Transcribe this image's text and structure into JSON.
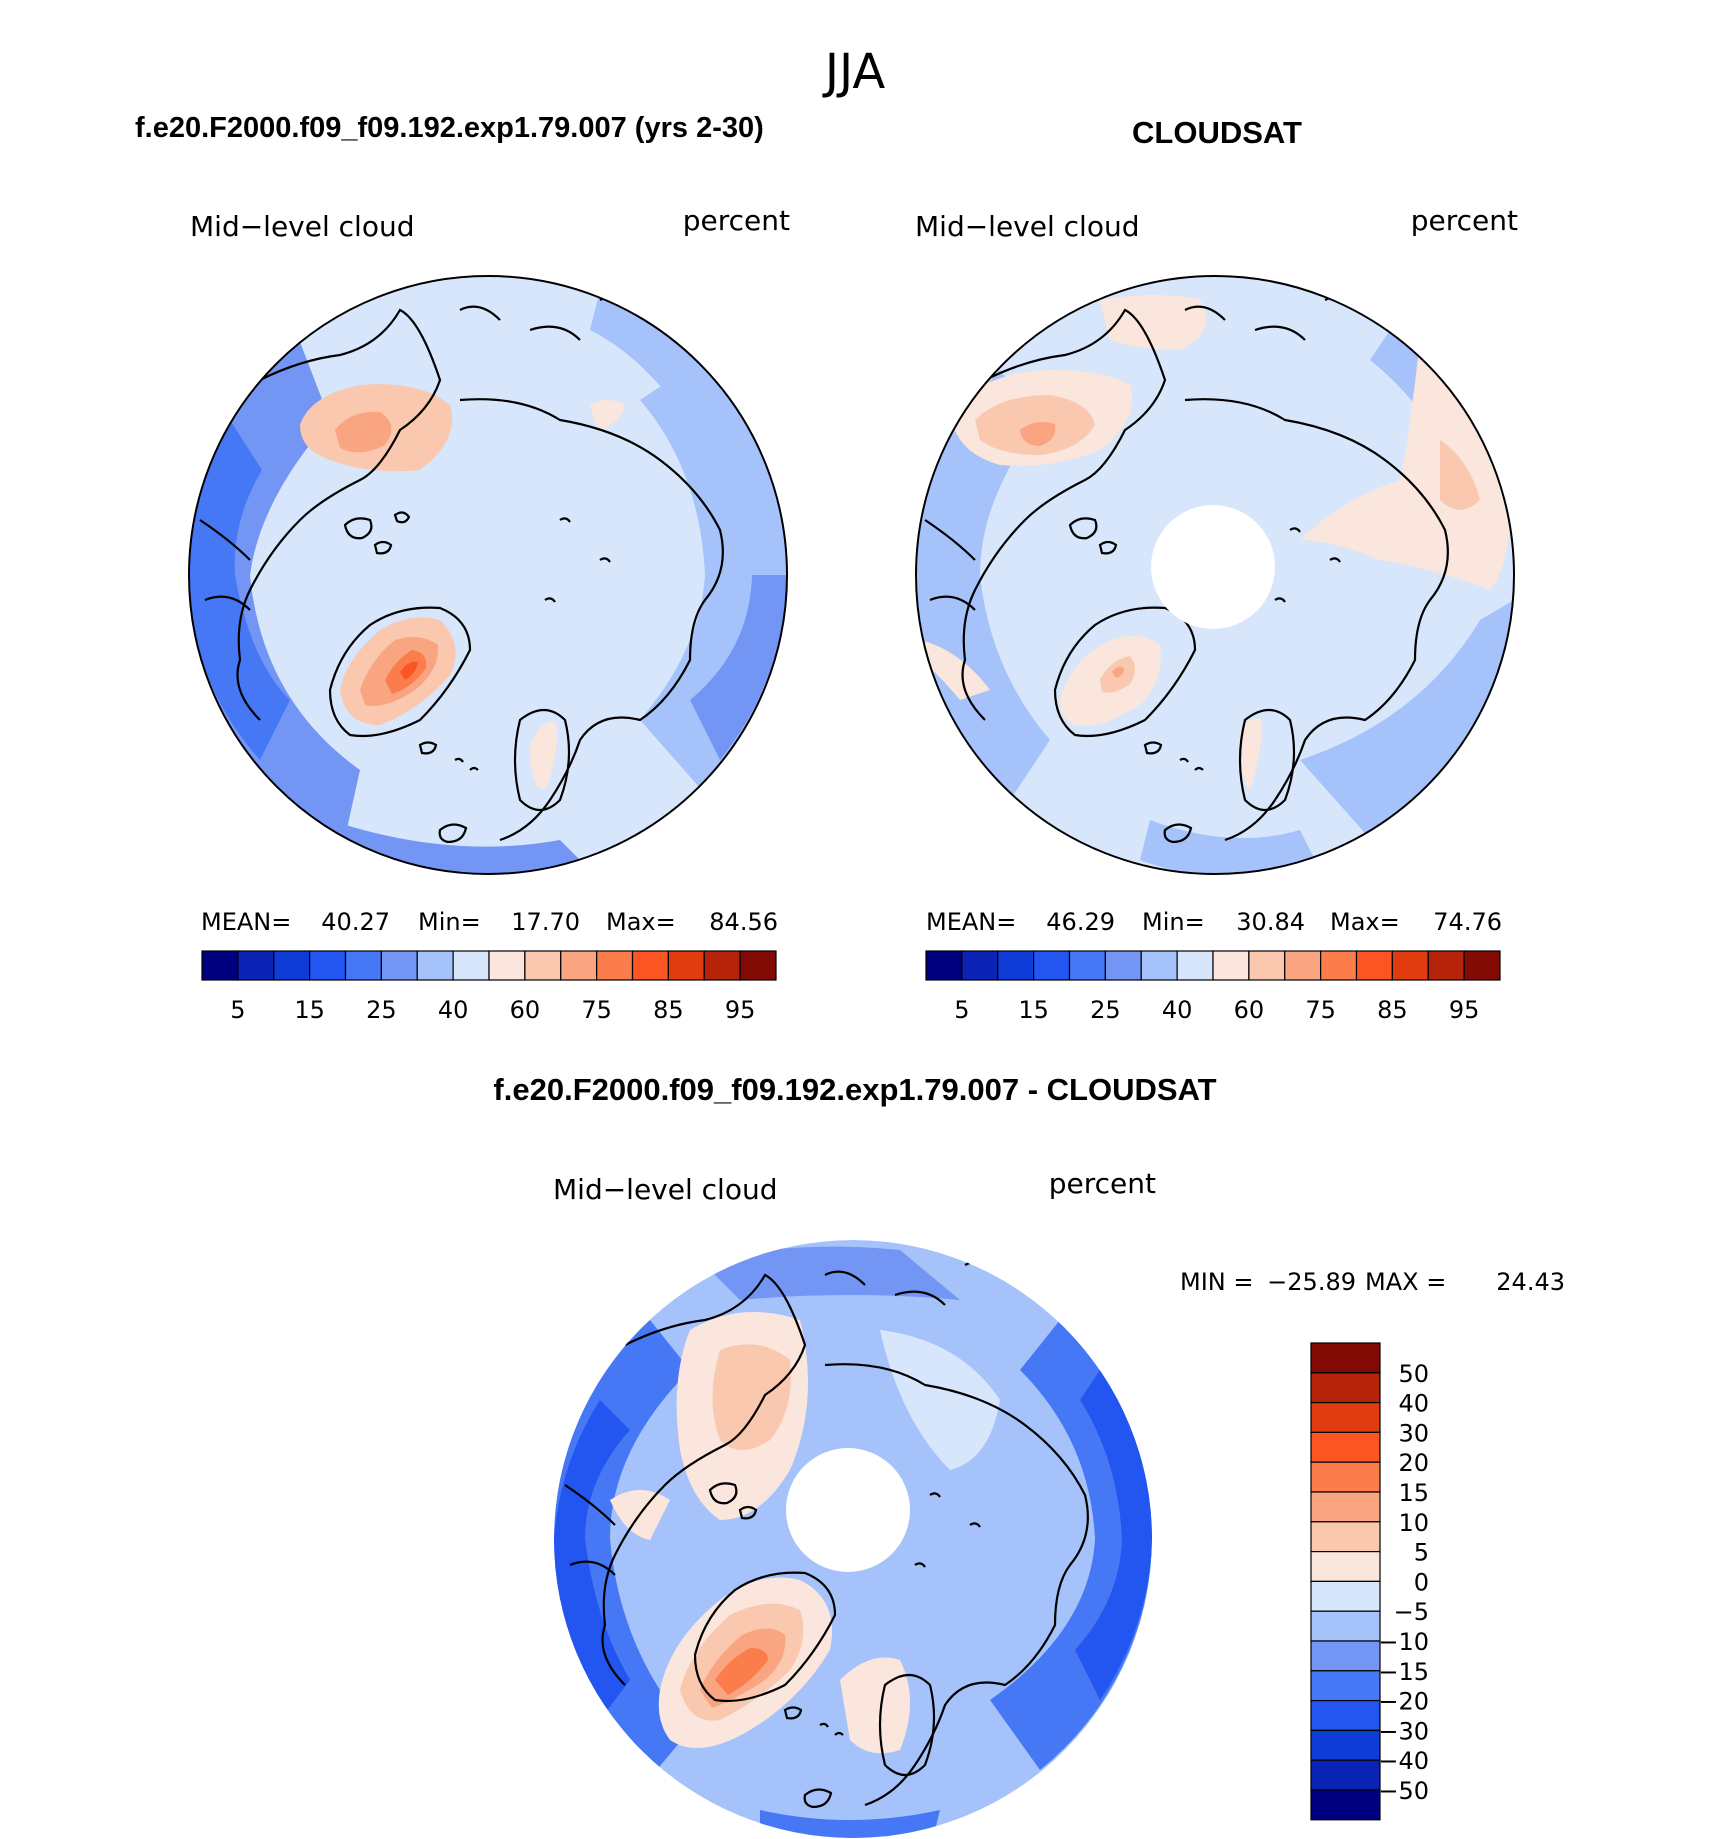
{
  "chart_data": [
    {
      "type": "contour-map",
      "projection": "north-polar-stereographic",
      "title": "f.e20.F2000.f09_f09.192.exp1.79.007 (yrs 2-30)",
      "left_label": "Mid−level cloud",
      "right_label": "percent",
      "stats": {
        "mean_label": "MEAN=",
        "mean": "40.27",
        "min_label": "Min=",
        "min": "17.70",
        "max_label": "Max=",
        "max": "84.56"
      },
      "colorbar_ticks": [
        "5",
        "15",
        "25",
        "40",
        "60",
        "75",
        "85",
        "95"
      ],
      "has_missing_pole": false
    },
    {
      "type": "contour-map",
      "projection": "north-polar-stereographic",
      "title": "CLOUDSAT",
      "left_label": "Mid−level cloud",
      "right_label": "percent",
      "stats": {
        "mean_label": "MEAN=",
        "mean": "46.29",
        "min_label": "Min=",
        "min": "30.84",
        "max_label": "Max=",
        "max": "74.76"
      },
      "colorbar_ticks": [
        "5",
        "15",
        "25",
        "40",
        "60",
        "75",
        "85",
        "95"
      ],
      "has_missing_pole": true
    },
    {
      "type": "contour-map",
      "projection": "north-polar-stereographic",
      "title": "f.e20.F2000.f09_f09.192.exp1.79.007 - CLOUDSAT",
      "left_label": "Mid−level cloud",
      "right_label": "percent",
      "stats": {
        "min_label": "MIN =",
        "min": "−25.89",
        "max_label": "MAX =",
        "max": "24.43"
      },
      "colorbar_ticks": [
        "50",
        "40",
        "30",
        "20",
        "15",
        "10",
        "5",
        "0",
        "−5",
        "−10",
        "−15",
        "−20",
        "−30",
        "−40",
        "−50"
      ],
      "has_missing_pole": true
    }
  ],
  "season": "JJA",
  "palette": [
    "#00007f",
    "#0a23b4",
    "#0f3cd7",
    "#2355f0",
    "#4678f5",
    "#7396f5",
    "#a5c3fa",
    "#d7e6fa",
    "#fae6dc",
    "#fac8af",
    "#faa582",
    "#fa7d4b",
    "#fa5523",
    "#e13c0f",
    "#b4230a",
    "#820a05"
  ],
  "coast_color": "#000000"
}
